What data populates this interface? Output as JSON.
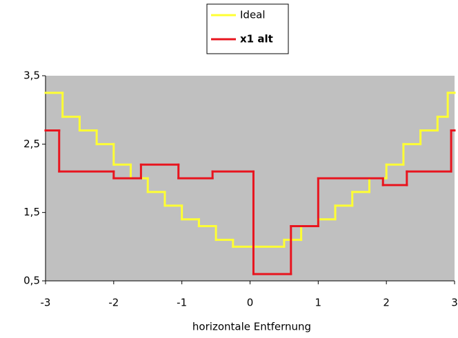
{
  "chart_data": {
    "type": "step",
    "xlabel": "horizontale Entfernung",
    "xlim": [
      -3,
      3
    ],
    "xticks": [
      -3,
      -2,
      -1,
      0,
      1,
      2,
      3
    ],
    "ylim": [
      0.5,
      3.5
    ],
    "yticks": [
      {
        "value": 0.5,
        "label": "0,5"
      },
      {
        "value": 1.5,
        "label": "1,5"
      },
      {
        "value": 2.5,
        "label": "2,5"
      },
      {
        "value": 3.5,
        "label": "3,5"
      }
    ],
    "grid": false,
    "legend": "top",
    "background": "#c0c0c0",
    "series": [
      {
        "name": "Ideal",
        "color": "#ffff33",
        "x": [
          -3,
          -2.75,
          -2.5,
          -2.25,
          -2,
          -1.75,
          -1.5,
          -1.25,
          -1,
          -0.75,
          -0.5,
          -0.25,
          0.5,
          0.75,
          1,
          1.25,
          1.5,
          1.75,
          2,
          2.25,
          2.5,
          2.75,
          2.9,
          3
        ],
        "values": [
          3.25,
          2.9,
          2.7,
          2.5,
          2.2,
          2.0,
          1.8,
          1.6,
          1.4,
          1.3,
          1.1,
          1.0,
          1.1,
          1.3,
          1.4,
          1.6,
          1.8,
          2.0,
          2.2,
          2.5,
          2.7,
          2.9,
          3.25,
          3.25
        ]
      },
      {
        "name": "x1 alt",
        "color": "#e8141e",
        "x": [
          -3,
          -2.8,
          -2,
          -1.6,
          -1.05,
          -0.55,
          0.05,
          0.6,
          1,
          1.95,
          2.3,
          2.95,
          3
        ],
        "values": [
          2.7,
          2.1,
          2.0,
          2.2,
          2.0,
          2.1,
          0.6,
          1.3,
          2.0,
          1.9,
          2.1,
          2.7,
          2.7
        ]
      }
    ]
  }
}
